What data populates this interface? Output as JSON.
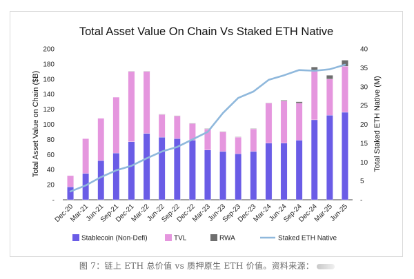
{
  "caption": "图 7：链上 ETH 总价值 vs 质押原生 ETH 价值。资料来源：",
  "chart_data": {
    "type": "bar",
    "title": "Total Asset Value On Chain Vs Staked ETH Native",
    "xlabel": "",
    "ylabel": "Total Asset Value on Chain ($B)",
    "y2label": "Total Staked ETH Native (M)",
    "ylim": [
      0,
      200
    ],
    "y2lim": [
      0,
      40
    ],
    "yticks": [
      "-",
      "20",
      "40",
      "60",
      "80",
      "100",
      "120",
      "140",
      "160",
      "180",
      "200"
    ],
    "y2ticks": [
      "-",
      "5",
      "10",
      "15",
      "20",
      "25",
      "30",
      "35",
      "40"
    ],
    "stacked": true,
    "grid": false,
    "legend_position": "bottom",
    "categories": [
      "Dec-20",
      "Mar-21",
      "Jun-21",
      "Sep-21",
      "Dec-21",
      "Mar-22",
      "Jun-22",
      "Sep-22",
      "Dec-22",
      "Mar-23",
      "Jun-23",
      "Sep-23",
      "Dec-23",
      "Mar-24",
      "Jun-24",
      "Sep-24",
      "Dec-24",
      "Mar-25",
      "Jun-25"
    ],
    "series": [
      {
        "name": "Stablecoin (Non-Defi)",
        "kind": "bar",
        "axis": "left",
        "color": "#6a5ce6",
        "values": [
          17,
          35,
          52,
          62,
          77,
          88,
          83,
          81,
          79,
          66,
          64,
          61,
          64,
          75,
          75,
          79,
          106,
          112,
          116
        ]
      },
      {
        "name": "TVL",
        "kind": "bar",
        "axis": "left",
        "color": "#e596de",
        "values": [
          15,
          46,
          56,
          74,
          93,
          82,
          30,
          30,
          22,
          28,
          26,
          22,
          30,
          53,
          56,
          49,
          66,
          48,
          61
        ]
      },
      {
        "name": "RWA",
        "kind": "bar",
        "axis": "left",
        "color": "#6e6e6e",
        "values": [
          0,
          0,
          0,
          0,
          0.5,
          0.5,
          0.5,
          0.5,
          0.5,
          0.5,
          0.5,
          0.5,
          0.5,
          0.5,
          1,
          2,
          4,
          5,
          8
        ]
      },
      {
        "name": "Staked ETH Native",
        "kind": "line",
        "axis": "right",
        "color": "#8fb8dc",
        "values": [
          2.2,
          3.8,
          6.0,
          7.8,
          9.0,
          11.0,
          12.8,
          14.0,
          16.0,
          18.0,
          23.0,
          27.0,
          28.7,
          31.8,
          33.0,
          34.4,
          34.2,
          34.6,
          35.8
        ]
      }
    ]
  }
}
